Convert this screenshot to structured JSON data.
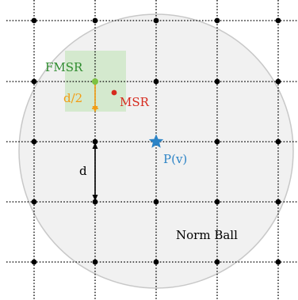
{
  "labels": {
    "fmsr": "FMSR",
    "msr": "MSR",
    "half_distance": "d/2",
    "distance": "d",
    "projection": "P(v)",
    "norm_ball": "Norm Ball"
  },
  "colors": {
    "background": "#ffffff",
    "ball_fill": "#f1f1f1",
    "ball_stroke": "#c8c8c8",
    "grid_line": "#000000",
    "grid_point": "#000000",
    "fmsr_region": "#cfe8c8",
    "fmsr": "#2e8b2e",
    "fmsr_point": "#7cc242",
    "msr": "#d62a1e",
    "half_distance": "#f39c12",
    "distance": "#000000",
    "projection": "#2b83c6",
    "norm_ball_text": "#000000"
  },
  "icons": {
    "grid_point": "dot",
    "projection_point": "star",
    "msr_point": "dot",
    "fmsr_point": "dot"
  }
}
